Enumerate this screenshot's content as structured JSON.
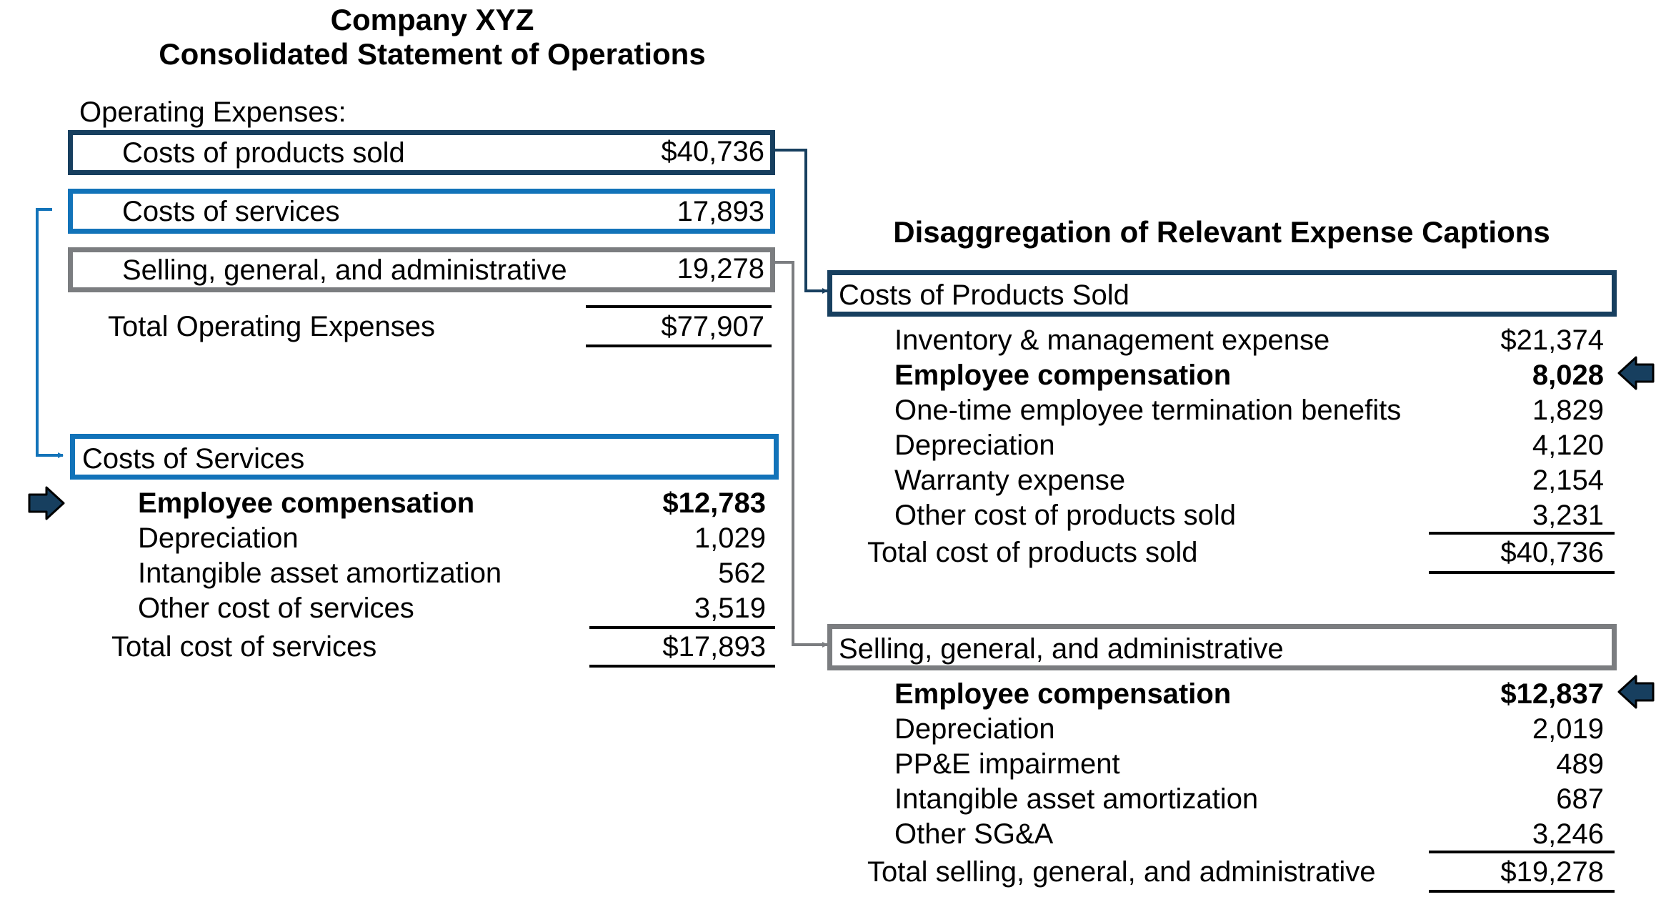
{
  "colors": {
    "dark_navy": "#173F5F",
    "blue": "#1273B9",
    "gray": "#7B7D80"
  },
  "statement": {
    "company": "Company XYZ",
    "title": "Consolidated Statement of Operations",
    "section_label": "Operating Expenses:",
    "lines": [
      {
        "label": "Costs of products sold",
        "value": "$40,736"
      },
      {
        "label": "Costs of services",
        "value": "17,893"
      },
      {
        "label": "Selling, general, and administrative",
        "value": "19,278"
      }
    ],
    "total": {
      "label": "Total Operating Expenses",
      "value": "$77,907"
    }
  },
  "costs_of_services": {
    "header": "Costs of Services",
    "rows": [
      {
        "label": "Employee compensation",
        "value": "$12,783"
      },
      {
        "label": "Depreciation",
        "value": "1,029"
      },
      {
        "label": "Intangible asset amortization",
        "value": "562"
      },
      {
        "label": "Other cost of services",
        "value": "3,519"
      }
    ],
    "total": {
      "label": "Total cost of services",
      "value": "$17,893"
    }
  },
  "disaggregation": {
    "title": "Disaggregation of Relevant Expense Captions",
    "products": {
      "header": "Costs of Products Sold",
      "rows": [
        {
          "label": "Inventory & management expense",
          "value": "$21,374"
        },
        {
          "label": "Employee compensation",
          "value": "8,028"
        },
        {
          "label": "One-time employee termination benefits",
          "value": "1,829"
        },
        {
          "label": "Depreciation",
          "value": "4,120"
        },
        {
          "label": "Warranty expense",
          "value": "2,154"
        },
        {
          "label": "Other cost of products sold",
          "value": "3,231"
        }
      ],
      "total": {
        "label": "Total cost of products sold",
        "value": "$40,736"
      }
    },
    "sga": {
      "header": "Selling, general, and administrative",
      "rows": [
        {
          "label": "Employee compensation",
          "value": "$12,837"
        },
        {
          "label": "Depreciation",
          "value": "2,019"
        },
        {
          "label": "PP&E impairment",
          "value": "489"
        },
        {
          "label": "Intangible asset amortization",
          "value": "687"
        },
        {
          "label": "Other SG&A",
          "value": "3,246"
        }
      ],
      "total": {
        "label": "Total selling, general, and administrative",
        "value": "$19,278"
      }
    }
  }
}
